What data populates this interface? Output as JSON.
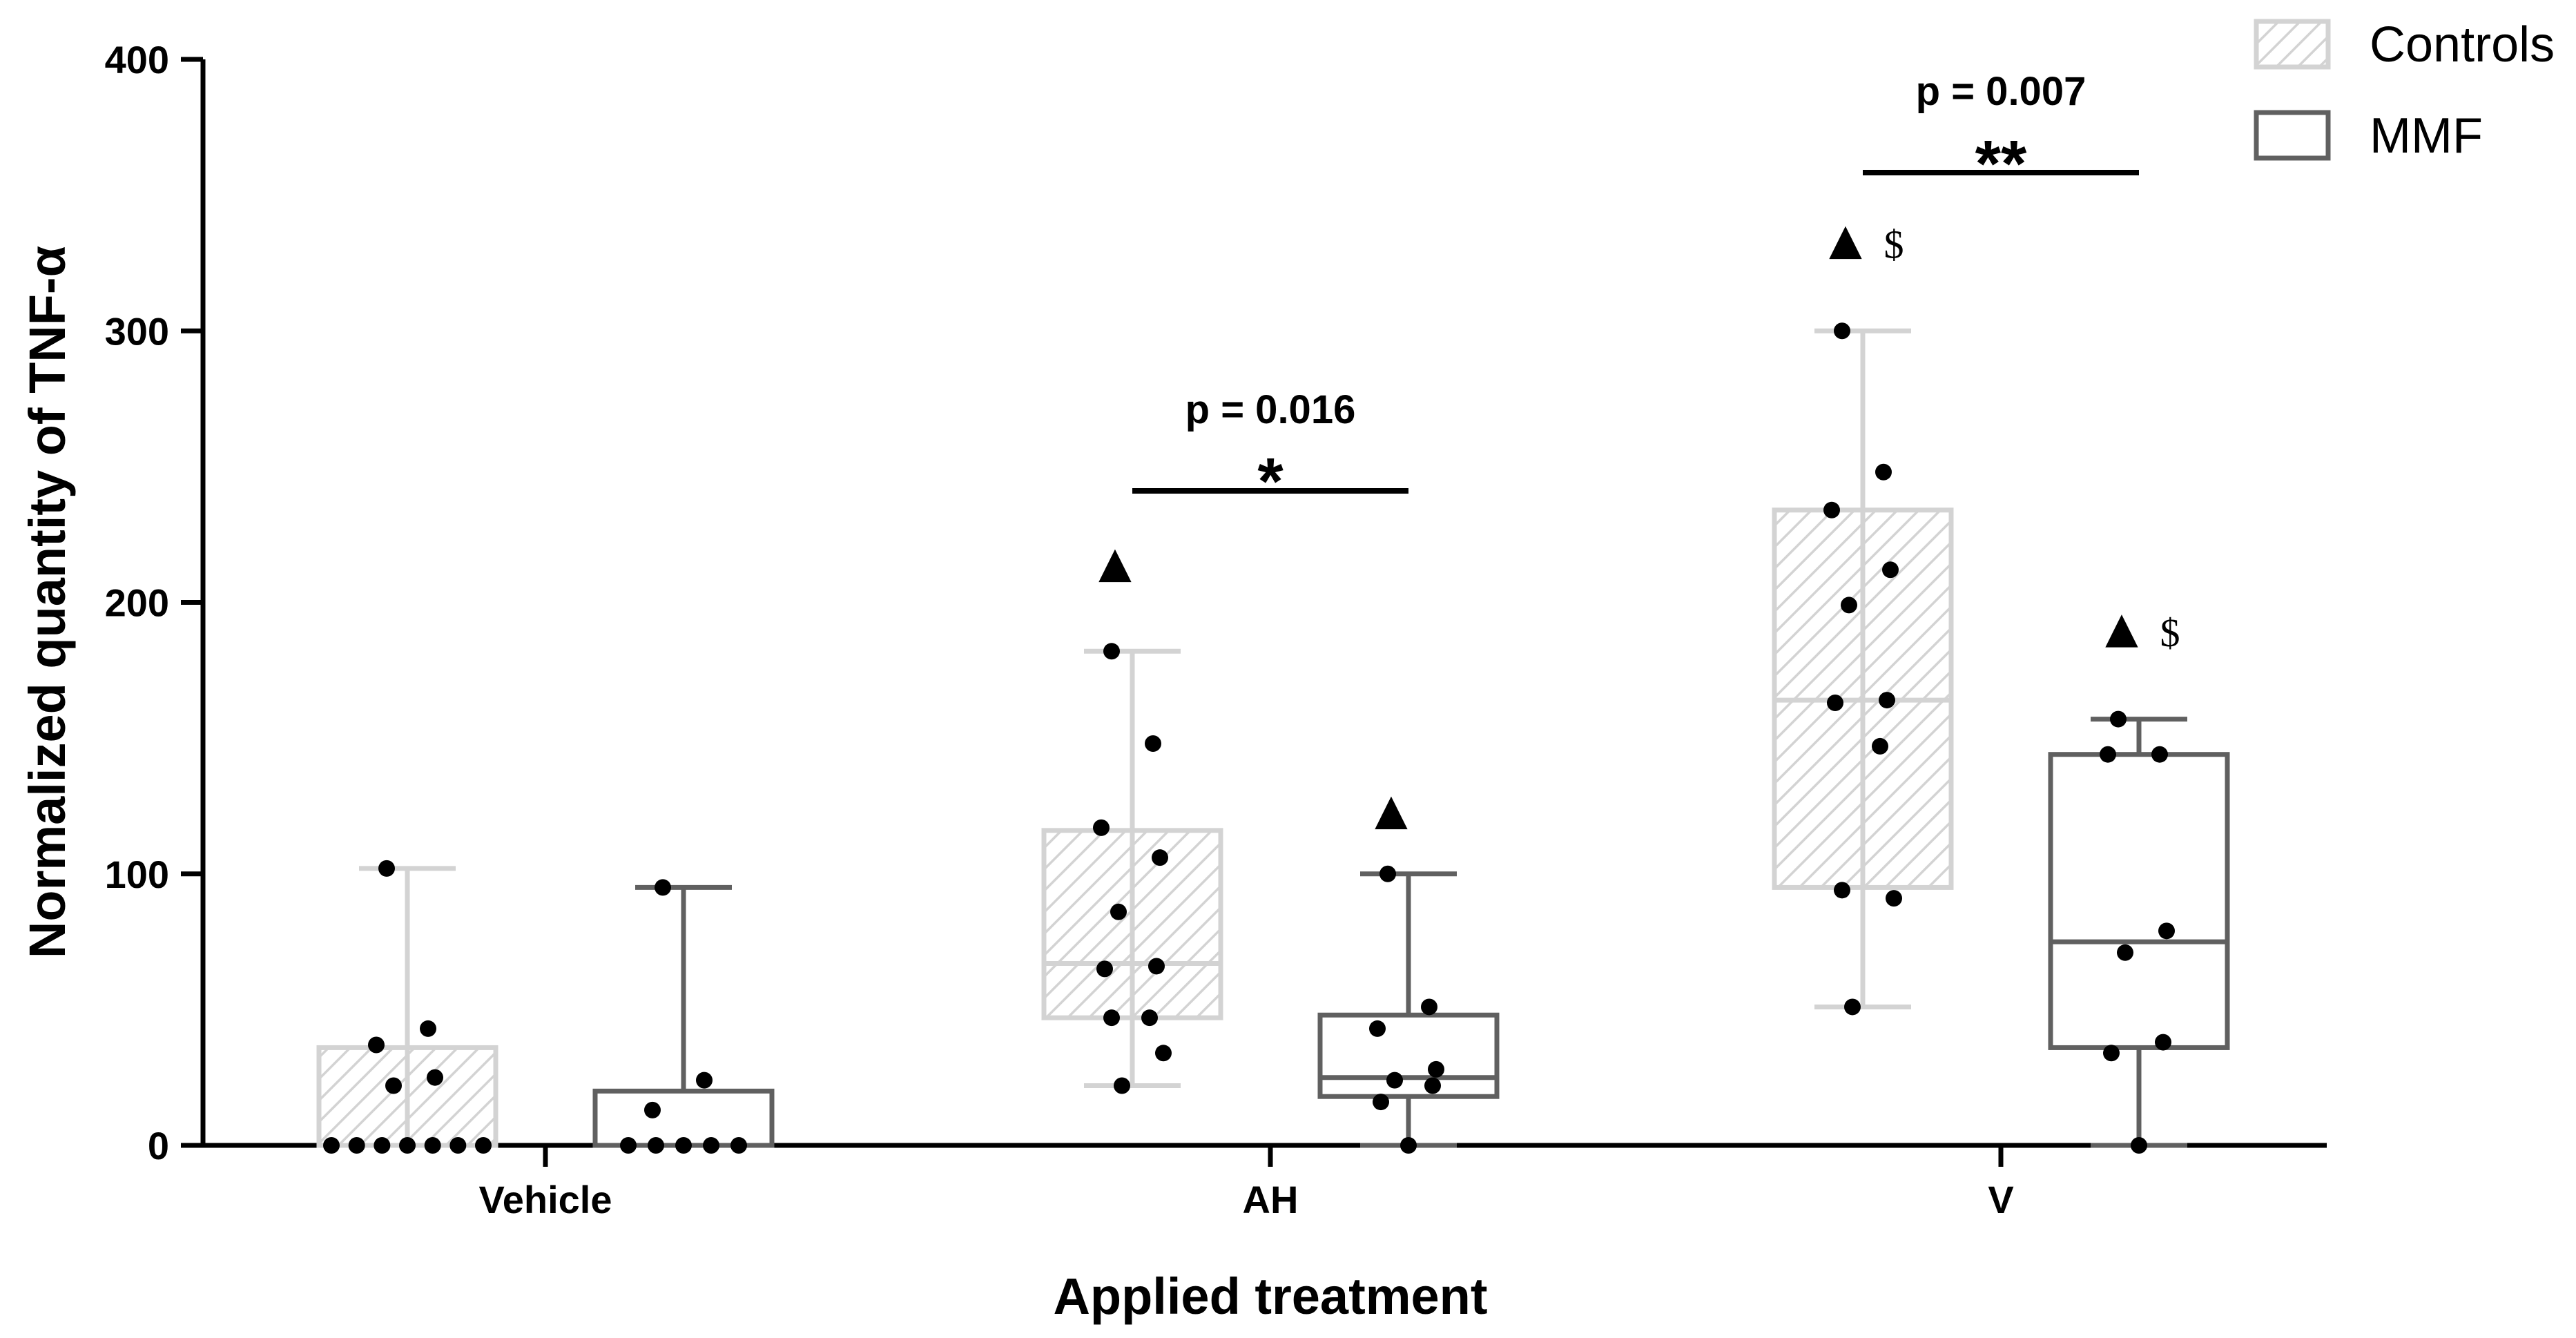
{
  "chart_data": {
    "type": "box",
    "title": "",
    "xlabel": "Applied treatment",
    "ylabel": "Normalized quantity of TNF-α",
    "ylim": [
      0,
      400
    ],
    "yticks": [
      0,
      100,
      200,
      300,
      400
    ],
    "categories": [
      "Vehicle",
      "AH",
      "V"
    ],
    "legend": {
      "placement": "top-right",
      "entries": [
        {
          "name": "Controls",
          "style": "hatched",
          "color": "#d3d3d3"
        },
        {
          "name": "MMF",
          "style": "open",
          "color": "#606060"
        }
      ]
    },
    "series": [
      {
        "name": "Controls",
        "color": "#d3d3d3",
        "boxes": [
          {
            "category": "Vehicle",
            "min": 0,
            "q1": 0,
            "median": 0,
            "q3": 36,
            "max": 102,
            "points": [
              102,
              43,
              37,
              25,
              22,
              0,
              0,
              0,
              0,
              0,
              0,
              0
            ]
          },
          {
            "category": "AH",
            "min": 22,
            "q1": 47,
            "median": 67,
            "q3": 116,
            "max": 182,
            "points": [
              182,
              148,
              117,
              106,
              86,
              66,
              65,
              47,
              47,
              34,
              22
            ]
          },
          {
            "category": "V",
            "min": 51,
            "q1": 95,
            "median": 164,
            "q3": 234,
            "max": 300,
            "points": [
              300,
              248,
              234,
              212,
              199,
              164,
              163,
              147,
              94,
              91,
              51
            ]
          }
        ]
      },
      {
        "name": "MMF",
        "color": "#606060",
        "boxes": [
          {
            "category": "Vehicle",
            "min": 0,
            "q1": 0,
            "median": 0,
            "q3": 20,
            "max": 95,
            "points": [
              95,
              24,
              13,
              0,
              0,
              0,
              0,
              0
            ]
          },
          {
            "category": "AH",
            "min": 0,
            "q1": 18,
            "median": 25,
            "q3": 48,
            "max": 100,
            "points": [
              100,
              51,
              43,
              28,
              24,
              22,
              16,
              0
            ]
          },
          {
            "category": "V",
            "min": 0,
            "q1": 36,
            "median": 75,
            "q3": 144,
            "max": 157,
            "points": [
              157,
              144,
              144,
              79,
              71,
              38,
              34,
              0
            ]
          }
        ]
      }
    ],
    "annotations": {
      "comparisons": [
        {
          "category": "AH",
          "p_text": "p = 0.016",
          "stars": "*"
        },
        {
          "category": "V",
          "p_text": "p = 0.007",
          "stars": "**"
        }
      ],
      "markers": [
        {
          "category": "AH",
          "series": "Controls",
          "y": 215,
          "symbols": [
            "▲"
          ]
        },
        {
          "category": "AH",
          "series": "MMF",
          "y": 124,
          "symbols": [
            "▲"
          ]
        },
        {
          "category": "V",
          "series": "Controls",
          "y": 334,
          "symbols": [
            "▲",
            "$"
          ]
        },
        {
          "category": "V",
          "series": "MMF",
          "y": 191,
          "symbols": [
            "▲",
            "$"
          ]
        }
      ]
    }
  }
}
